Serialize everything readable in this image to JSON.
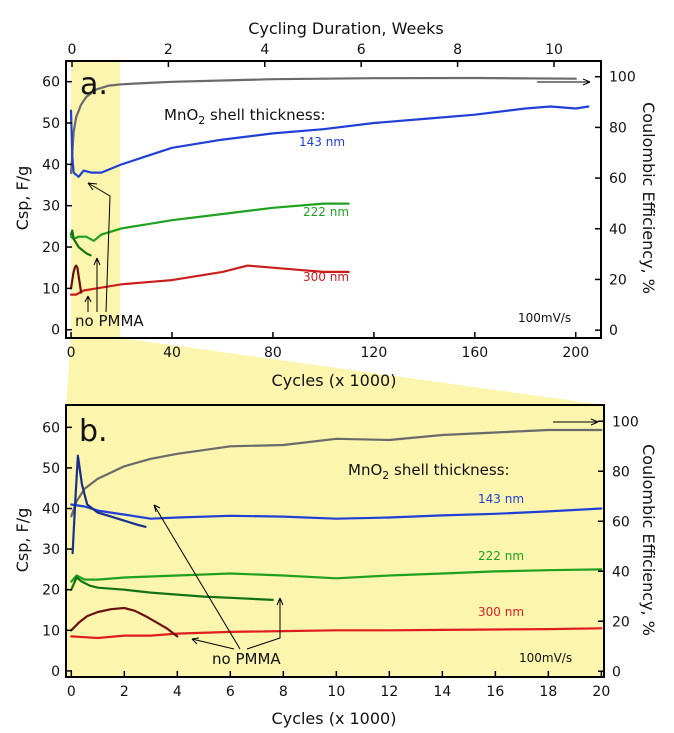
{
  "chart_data": [
    {
      "panel": "a",
      "type": "line",
      "panel_label": "a.",
      "top_axis_label": "Cycling Duration, Weeks",
      "top_axis_ticks": [
        "0",
        "2",
        "4",
        "6",
        "8",
        "10"
      ],
      "top_axis_range": [
        0,
        11.1
      ],
      "xlabel": "Cycles (x 1000)",
      "ylabel": "Csp, F/g",
      "y2label": "Coulombic Efficiency, %",
      "xlim": [
        -2,
        210
      ],
      "ylim": [
        -2,
        65
      ],
      "y2lim": [
        -3.1,
        106.2
      ],
      "xticks": [
        "0",
        "40",
        "80",
        "120",
        "160",
        "200"
      ],
      "yticks": [
        "0",
        "10",
        "20",
        "30",
        "40",
        "50",
        "60"
      ],
      "y2ticks": [
        "0",
        "20",
        "40",
        "60",
        "80",
        "100"
      ],
      "highlight_x_range": [
        0,
        19.5
      ],
      "annotations": {
        "shell_title": "MnO",
        "shell_sub": "2",
        "shell_rest": " shell thickness:",
        "no_pmma": "no PMMA",
        "rate": "100mV/s"
      },
      "series": [
        {
          "name": "Coulombic efficiency",
          "axis": "right",
          "color": "#6a6a6a",
          "x": [
            0,
            1,
            2,
            4,
            6,
            10,
            15,
            20,
            30,
            40,
            60,
            80,
            100,
            120,
            160,
            200
          ],
          "values": [
            62,
            78,
            84,
            89,
            92,
            95,
            96.5,
            97,
            97.5,
            98,
            98.5,
            99,
            99.2,
            99.4,
            99.5,
            99.2
          ]
        },
        {
          "name": "143 nm",
          "axis": "left",
          "color": "#1f3fd6",
          "x": [
            0,
            0.5,
            1,
            2,
            3,
            5,
            8,
            12,
            16,
            20,
            30,
            40,
            60,
            80,
            100,
            120,
            140,
            160,
            180,
            190,
            200,
            205
          ],
          "values": [
            53,
            42,
            38,
            37.5,
            37,
            38.5,
            38,
            38,
            39,
            40,
            42,
            44,
            46,
            47.5,
            48.5,
            50,
            51,
            52,
            53.5,
            54,
            53.5,
            54
          ]
        },
        {
          "name": "222 nm",
          "axis": "left",
          "color": "#1fa01f",
          "x": [
            0,
            1,
            3,
            6,
            9,
            12,
            20,
            30,
            40,
            60,
            80,
            100,
            110
          ],
          "values": [
            22.5,
            22,
            22.5,
            22.5,
            21.5,
            23,
            24.5,
            25.5,
            26.5,
            28,
            29.5,
            30.5,
            30.5
          ]
        },
        {
          "name": "222 nm (no PMMA)",
          "axis": "left",
          "color": "#137313",
          "x": [
            0,
            0.5,
            1,
            2,
            3,
            4,
            5,
            6,
            7,
            7.7
          ],
          "values": [
            23,
            24,
            22,
            21,
            20,
            19.5,
            19,
            18.5,
            18.2,
            18
          ]
        },
        {
          "name": "300 nm",
          "axis": "left",
          "color": "#cc1d1d",
          "x": [
            0,
            2,
            5,
            10,
            20,
            30,
            40,
            60,
            70,
            80,
            90,
            100,
            110
          ],
          "values": [
            8.5,
            8.5,
            9.5,
            10,
            11,
            11.5,
            12,
            14,
            15.5,
            15,
            14.5,
            14,
            14
          ]
        },
        {
          "name": "300 nm (no PMMA)",
          "axis": "left",
          "color": "#6b1010",
          "x": [
            0,
            0.5,
            1,
            1.5,
            2,
            2.5,
            3,
            3.5,
            4
          ],
          "values": [
            10,
            12,
            14,
            15,
            15.5,
            15,
            13,
            11,
            9
          ]
        }
      ],
      "labels": [
        "143 nm",
        "222 nm",
        "300 nm"
      ]
    },
    {
      "panel": "b",
      "type": "line",
      "panel_label": "b.",
      "xlabel": "Cycles (x 1000)",
      "ylabel": "Csp, F/g",
      "y2label": "Coulombic Efficiency, %",
      "xlim": [
        -0.2,
        20.1
      ],
      "ylim": [
        -1.5,
        65.5
      ],
      "y2lim": [
        -2.3,
        106.5
      ],
      "xticks": [
        "0",
        "2",
        "4",
        "6",
        "8",
        "10",
        "12",
        "14",
        "16",
        "18",
        "20"
      ],
      "yticks": [
        "0",
        "10",
        "20",
        "30",
        "40",
        "50",
        "60"
      ],
      "y2ticks": [
        "0",
        "20",
        "40",
        "60",
        "80",
        "100"
      ],
      "annotations": {
        "shell_title": "MnO",
        "shell_sub": "2",
        "shell_rest": " shell thickness:",
        "no_pmma": "no PMMA",
        "rate": "100mV/s"
      },
      "series": [
        {
          "name": "Coulombic efficiency",
          "axis": "right",
          "color": "#6a6a6a",
          "x": [
            0,
            0.2,
            0.5,
            1,
            2,
            3,
            4,
            6,
            8,
            10,
            12,
            14,
            16,
            18,
            20
          ],
          "values": [
            62,
            68,
            73,
            77,
            82,
            85,
            87,
            90,
            90.5,
            93,
            92.5,
            94.5,
            95.5,
            96.5,
            96.5
          ]
        },
        {
          "name": "143 nm",
          "axis": "left",
          "color": "#1f3fd6",
          "x": [
            0,
            0.5,
            1,
            2,
            3,
            4,
            6,
            8,
            10,
            12,
            14,
            16,
            18,
            20
          ],
          "values": [
            41,
            40.5,
            39.5,
            38.5,
            37.5,
            37.8,
            38.2,
            38,
            37.5,
            37.8,
            38.3,
            38.7,
            39.3,
            40
          ]
        },
        {
          "name": "143 nm (no PMMA)",
          "axis": "left",
          "color": "#1a2f8a",
          "x": [
            0.05,
            0.15,
            0.25,
            0.4,
            0.6,
            1,
            1.5,
            2,
            2.5,
            2.8
          ],
          "values": [
            29,
            42,
            53,
            46,
            41,
            39,
            38,
            37,
            36,
            35.5
          ]
        },
        {
          "name": "222 nm",
          "axis": "left",
          "color": "#1fa01f",
          "x": [
            0,
            0.2,
            0.5,
            1,
            2,
            4,
            6,
            8,
            10,
            12,
            14,
            16,
            18,
            20
          ],
          "values": [
            22,
            23.5,
            22.5,
            22.5,
            23,
            23.5,
            24,
            23.5,
            22.8,
            23.5,
            24,
            24.5,
            24.8,
            25
          ]
        },
        {
          "name": "222 nm (no PMMA)",
          "axis": "left",
          "color": "#137313",
          "x": [
            0,
            0.2,
            0.4,
            0.7,
            1,
            2,
            3,
            4,
            5,
            6,
            7,
            7.6
          ],
          "values": [
            20,
            23,
            22,
            21,
            20.5,
            20,
            19.3,
            18.8,
            18.3,
            18,
            17.7,
            17.5
          ]
        },
        {
          "name": "300 nm",
          "axis": "left",
          "color": "#e01d1d",
          "x": [
            0,
            0.5,
            1,
            2,
            3,
            4,
            6,
            8,
            10,
            12,
            14,
            16,
            18,
            20
          ],
          "values": [
            8.5,
            8.3,
            8.1,
            8.7,
            8.7,
            9.2,
            9.6,
            9.8,
            10,
            10,
            10.1,
            10.2,
            10.3,
            10.5
          ]
        },
        {
          "name": "300 nm (no PMMA)",
          "axis": "left",
          "color": "#6b1010",
          "x": [
            0,
            0.3,
            0.6,
            1,
            1.5,
            2,
            2.4,
            2.8,
            3.2,
            3.6,
            4
          ],
          "values": [
            10,
            12,
            13.5,
            14.5,
            15.2,
            15.5,
            14.8,
            13.5,
            12,
            10.5,
            8.5
          ]
        }
      ],
      "labels": [
        "143 nm",
        "222 nm",
        "300 nm"
      ]
    }
  ]
}
